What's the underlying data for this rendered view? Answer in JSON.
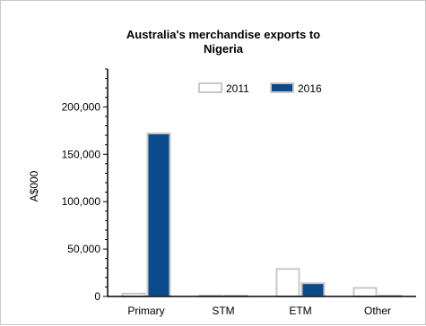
{
  "chart_data": {
    "type": "bar",
    "title_lines": [
      "Australia's merchandise exports to",
      "Nigeria"
    ],
    "xlabel": "",
    "ylabel": "A$000",
    "categories": [
      "Primary",
      "STM",
      "ETM",
      "Other"
    ],
    "series": [
      {
        "name": "2011",
        "values": [
          3000,
          500,
          29000,
          9000
        ],
        "fill": "#ffffff",
        "stroke": "#c8c8c8"
      },
      {
        "name": "2016",
        "values": [
          172000,
          500,
          14000,
          0
        ],
        "fill": "#0b4a8b",
        "stroke": "#c8c8c8"
      }
    ],
    "ylim": [
      0,
      240000
    ],
    "yticks": [
      0,
      50000,
      100000,
      150000,
      200000
    ],
    "ytick_labels": [
      "0",
      "50,000",
      "100,000",
      "150,000",
      "200,000"
    ],
    "grid": false,
    "legend_position": "top-center"
  }
}
